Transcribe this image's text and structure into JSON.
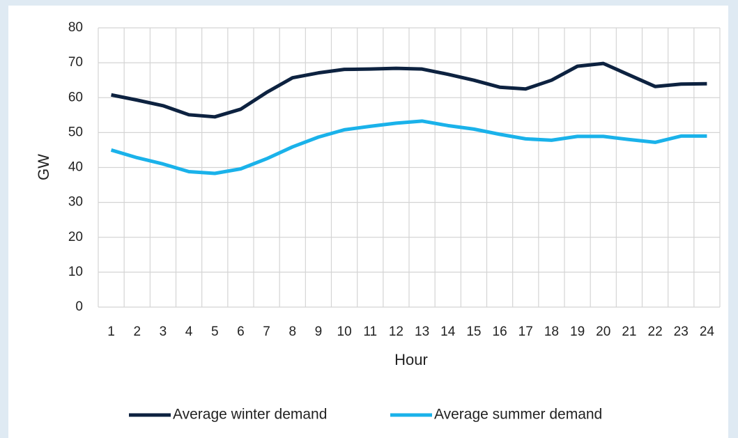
{
  "chart_data": {
    "type": "line",
    "x_label": "Hour",
    "y_label": "GW",
    "categories": [
      1,
      2,
      3,
      4,
      5,
      6,
      7,
      8,
      9,
      10,
      11,
      12,
      13,
      14,
      15,
      16,
      17,
      18,
      19,
      20,
      21,
      22,
      23,
      24
    ],
    "series": [
      {
        "name": "Average winter demand",
        "color": "#0d2240",
        "values": [
          60.8,
          59.3,
          57.7,
          55.1,
          54.5,
          56.7,
          61.5,
          65.7,
          67.1,
          68.1,
          68.2,
          68.4,
          68.2,
          66.7,
          65.0,
          63.0,
          62.5,
          65.0,
          69.0,
          69.8,
          66.5,
          63.2,
          63.9,
          64.0
        ]
      },
      {
        "name": "Average summer demand",
        "color": "#1ab2ea",
        "values": [
          45.0,
          42.8,
          41.0,
          38.8,
          38.3,
          39.6,
          42.5,
          45.9,
          48.7,
          50.8,
          51.8,
          52.7,
          53.3,
          52.0,
          51.0,
          49.5,
          48.2,
          47.8,
          48.9,
          48.9,
          48.0,
          47.2,
          49.0,
          49.0
        ]
      }
    ],
    "ylim": [
      0,
      80
    ],
    "yticks": [
      0,
      10,
      20,
      30,
      40,
      50,
      60,
      70,
      80
    ],
    "grid": true,
    "legend": "bottom"
  }
}
